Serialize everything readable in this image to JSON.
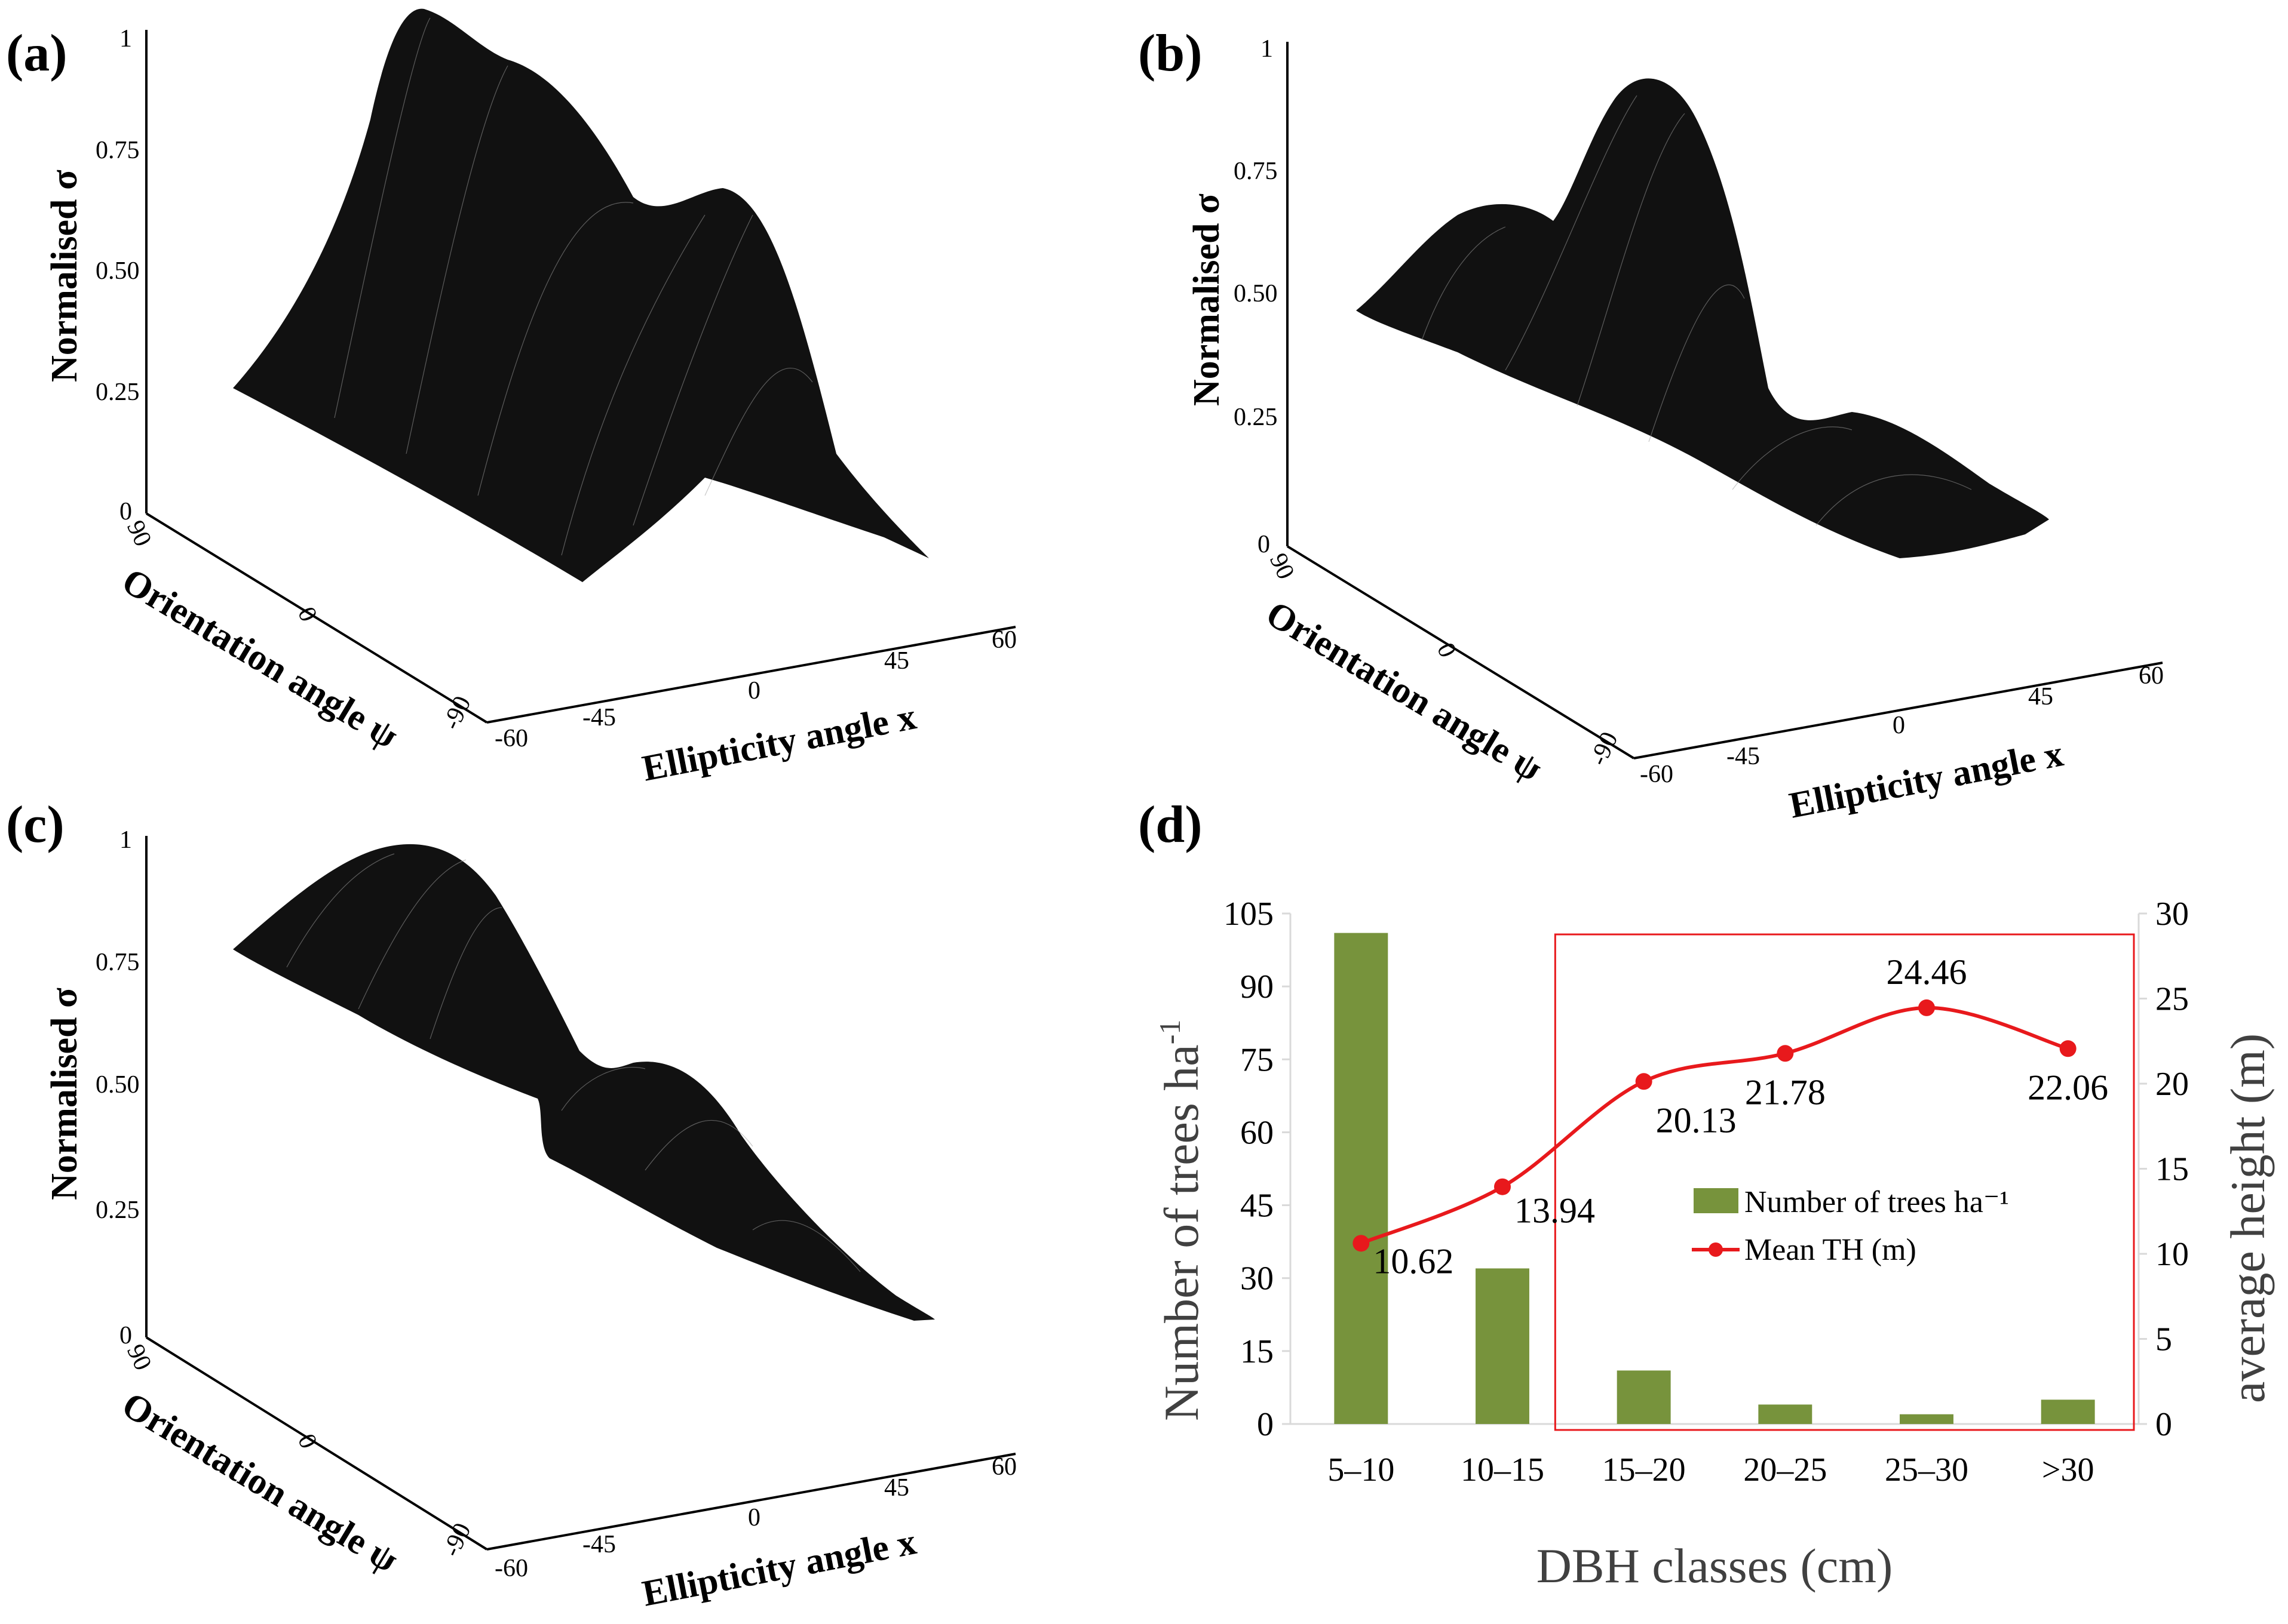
{
  "panels": [
    {
      "label": "(a)",
      "z_axis_label": "Normalised σ",
      "z_ticks": [
        "1",
        "0.75",
        "0.50",
        "0.25",
        "0"
      ],
      "orientation_axis_label": "Orientation angle ψ",
      "orientation_ticks": [
        "90",
        "0",
        "-90"
      ],
      "ellipticity_axis_label": "Ellipticity angle x",
      "ellipticity_ticks": [
        "-60",
        "-45",
        "0",
        "45",
        "60"
      ]
    },
    {
      "label": "(b)",
      "z_axis_label": "Normalised σ",
      "z_ticks": [
        "1",
        "0.75",
        "0.50",
        "0.25",
        "0"
      ],
      "orientation_axis_label": "Orientation angle ψ",
      "orientation_ticks": [
        "90",
        "0",
        "-90"
      ],
      "ellipticity_axis_label": "Ellipticity angle x",
      "ellipticity_ticks": [
        "-60",
        "-45",
        "0",
        "45",
        "60"
      ]
    },
    {
      "label": "(c)",
      "z_axis_label": "Normalised σ",
      "z_ticks": [
        "1",
        "0.75",
        "0.50",
        "0.25",
        "0"
      ],
      "orientation_axis_label": "Orientation angle ψ",
      "orientation_ticks": [
        "90",
        "0",
        "-90"
      ],
      "ellipticity_axis_label": "Ellipticity angle x",
      "ellipticity_ticks": [
        "-60",
        "-45",
        "0",
        "45",
        "60"
      ]
    }
  ],
  "chart_data": {
    "label": "(d)",
    "type": "bar",
    "categories": [
      "5–10",
      "10–15",
      "15–20",
      "20–25",
      "25–30",
      ">30"
    ],
    "series": [
      {
        "name": "Number of trees ha⁻¹",
        "type": "bar",
        "axis": "left",
        "color": "#77933c",
        "values": [
          101,
          32,
          11,
          4,
          2,
          5
        ]
      },
      {
        "name": "Mean TH (m)",
        "type": "line",
        "axis": "right",
        "color": "#e8191c",
        "values": [
          10.62,
          13.94,
          20.13,
          21.78,
          24.46,
          22.06
        ],
        "data_labels": [
          "10.62",
          "13.94",
          "20.13",
          "21.78",
          "24.46",
          "22.06"
        ]
      }
    ],
    "xlabel": "DBH classes (cm)",
    "ylabel_left": "Number of trees ha",
    "ylabel_left_superscript": "-1",
    "ylabel_right": "average height (m)",
    "ylim_left": [
      0,
      105
    ],
    "yticks_left": [
      "0",
      "15",
      "30",
      "45",
      "60",
      "75",
      "90",
      "105"
    ],
    "ylim_right": [
      0,
      30
    ],
    "yticks_right": [
      "0",
      "5",
      "10",
      "15",
      "20",
      "25",
      "30"
    ],
    "legend": {
      "position": "center-right",
      "entries": [
        "Number of trees ha⁻¹",
        "Mean TH (m)"
      ]
    },
    "highlight_box": {
      "categories": [
        "15–20",
        ">30"
      ],
      "color": "#e8191c"
    }
  }
}
